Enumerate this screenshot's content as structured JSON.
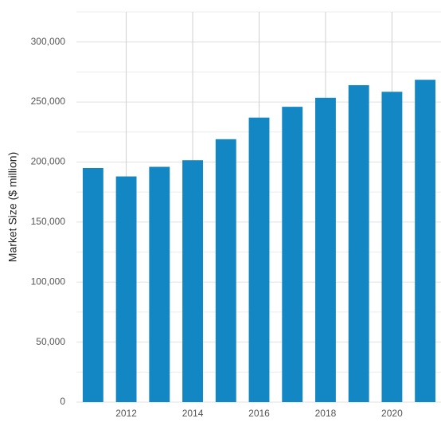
{
  "chart_data": {
    "type": "bar",
    "y_label": "Market Size ($ million)",
    "x": [
      2011,
      2012,
      2013,
      2014,
      2015,
      2016,
      2017,
      2018,
      2019,
      2020,
      2021
    ],
    "values": [
      195000,
      188000,
      196000,
      201500,
      219000,
      237000,
      246000,
      253500,
      264000,
      258500,
      268500
    ],
    "color": "#1287c4",
    "xlim": [
      2010.5,
      2021.5
    ],
    "xticks": [
      2012,
      2014,
      2016,
      2018,
      2020
    ],
    "ylim": [
      0,
      325000
    ],
    "yticks": [
      0,
      {
        "value": 50000,
        "label": "50,000"
      },
      {
        "value": 100000,
        "label": "100,000"
      },
      {
        "value": 150000,
        "label": "150,000"
      },
      {
        "value": 200000,
        "label": "200,000"
      },
      {
        "value": 250000,
        "label": "250,000"
      },
      {
        "value": 300000,
        "label": "300,000"
      }
    ],
    "y_minor_ticks": [
      25000,
      75000,
      125000,
      175000,
      225000,
      275000,
      325000
    ],
    "grid": true
  }
}
